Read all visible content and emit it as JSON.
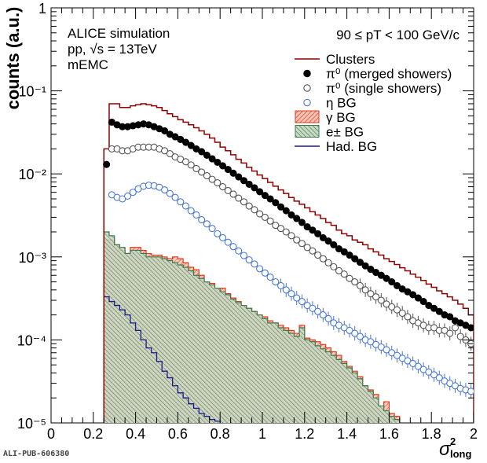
{
  "chart_data": {
    "type": "line",
    "ylabel": "counts (a.u.)",
    "xlabel": "σ²long",
    "x_scale": "linear",
    "y_scale": "log",
    "xlim": [
      0,
      2
    ],
    "ylim": [
      1e-05,
      1
    ],
    "x_ticks": [
      0,
      0.2,
      0.4,
      0.6,
      0.8,
      1,
      1.2,
      1.4,
      1.6,
      1.8,
      2
    ],
    "x_tick_labels": [
      "0",
      "0.2",
      "0.4",
      "0.6",
      "0.8",
      "1",
      "1.2",
      "1.4",
      "1.6",
      "1.8",
      "2"
    ],
    "y_ticks": [
      1e-05,
      0.0001,
      0.001,
      0.01,
      0.1,
      1
    ],
    "y_tick_labels": [
      "10⁻⁵",
      "10⁻⁴",
      "10⁻³",
      "10⁻²",
      "10⁻¹",
      "1"
    ],
    "annotations": {
      "experiment": "ALICE simulation",
      "system": "pp, √s = 13TeV",
      "detector": "mEMC",
      "pt_range": "90 ≤ pT < 100 GeV/c"
    },
    "legend_position": "top-right",
    "colors": {
      "clusters": "#8b0000",
      "merged": "#000000",
      "single": "#555555",
      "eta": "#4a78d0",
      "gamma": "#e03a1a",
      "electron": "#3f7a4e",
      "hadron": "#1a1a8c"
    },
    "bin_edges": [
      0.25,
      0.275,
      0.3,
      0.325,
      0.35,
      0.375,
      0.4,
      0.425,
      0.45,
      0.475,
      0.5,
      0.525,
      0.55,
      0.575,
      0.6,
      0.625,
      0.65,
      0.675,
      0.7,
      0.725,
      0.75,
      0.775,
      0.8,
      0.825,
      0.85,
      0.875,
      0.9,
      0.925,
      0.95,
      0.975,
      1.0,
      1.025,
      1.05,
      1.075,
      1.1,
      1.125,
      1.15,
      1.175,
      1.2,
      1.225,
      1.25,
      1.275,
      1.3,
      1.325,
      1.35,
      1.375,
      1.4,
      1.425,
      1.45,
      1.475,
      1.5,
      1.525,
      1.55,
      1.575,
      1.6,
      1.625,
      1.65,
      1.675,
      1.7,
      1.725,
      1.75,
      1.775,
      1.8,
      1.825,
      1.85,
      1.875,
      1.9,
      1.925,
      1.95,
      1.975,
      2.0
    ],
    "series": [
      {
        "name": "Clusters",
        "style": "histogram",
        "color_key": "clusters",
        "values": [
          0.02,
          0.07,
          0.07,
          0.063,
          0.063,
          0.066,
          0.068,
          0.07,
          0.068,
          0.066,
          0.063,
          0.058,
          0.053,
          0.049,
          0.045,
          0.042,
          0.039,
          0.036,
          0.033,
          0.03,
          0.027,
          0.024,
          0.021,
          0.019,
          0.017,
          0.015,
          0.0135,
          0.012,
          0.0108,
          0.0097,
          0.0088,
          0.0079,
          0.0071,
          0.0064,
          0.0058,
          0.0052,
          0.0047,
          0.0043,
          0.0039,
          0.0035,
          0.0032,
          0.0029,
          0.0026,
          0.0024,
          0.0021,
          0.0019,
          0.0018,
          0.0016,
          0.0015,
          0.0014,
          0.00125,
          0.00115,
          0.00105,
          0.00095,
          0.00088,
          0.00081,
          0.00074,
          0.00068,
          0.00062,
          0.00057,
          0.00052,
          0.00047,
          0.00043,
          0.00039,
          0.00036,
          0.00033,
          0.0003,
          0.00027,
          0.00024,
          0.0002
        ]
      },
      {
        "name": "π⁰ (merged showers)",
        "style": "filled-markers",
        "color_key": "merged",
        "x": [
          0.2625,
          0.2875,
          0.3125,
          0.3375,
          0.3625,
          0.3875,
          0.4125,
          0.4375,
          0.4625,
          0.4875,
          0.5125,
          0.5375,
          0.5625,
          0.5875,
          0.6125,
          0.6375,
          0.6625,
          0.6875,
          0.7125,
          0.7375,
          0.7625,
          0.7875,
          0.8125,
          0.8375,
          0.8625,
          0.8875,
          0.9125,
          0.9375,
          0.9625,
          0.9875,
          1.0125,
          1.0375,
          1.0625,
          1.0875,
          1.1125,
          1.1375,
          1.1625,
          1.1875,
          1.2125,
          1.2375,
          1.2625,
          1.2875,
          1.3125,
          1.3375,
          1.3625,
          1.3875,
          1.4125,
          1.4375,
          1.4625,
          1.4875,
          1.5125,
          1.5375,
          1.5625,
          1.5875,
          1.6125,
          1.6375,
          1.6625,
          1.6875,
          1.7125,
          1.7375,
          1.7625,
          1.7875,
          1.8125,
          1.8375,
          1.8625,
          1.8875,
          1.9125,
          1.9375,
          1.9625,
          1.9875
        ],
        "values": [
          0.013,
          0.042,
          0.039,
          0.037,
          0.037,
          0.038,
          0.039,
          0.04,
          0.039,
          0.037,
          0.035,
          0.033,
          0.03,
          0.028,
          0.026,
          0.024,
          0.022,
          0.02,
          0.0185,
          0.0168,
          0.0152,
          0.0138,
          0.0125,
          0.0113,
          0.0102,
          0.0092,
          0.0083,
          0.0075,
          0.0068,
          0.0061,
          0.0055,
          0.005,
          0.0045,
          0.004,
          0.0036,
          0.0032,
          0.0029,
          0.0026,
          0.0023,
          0.0021,
          0.0019,
          0.0017,
          0.00155,
          0.0014,
          0.00125,
          0.00115,
          0.00105,
          0.00095,
          0.00086,
          0.00078,
          0.00071,
          0.00065,
          0.0006,
          0.00055,
          0.0005,
          0.00045,
          0.00041,
          0.00038,
          0.00035,
          0.00032,
          0.00029,
          0.00026,
          0.00024,
          0.00022,
          0.0002,
          0.00019,
          0.00017,
          0.00016,
          0.00015,
          0.00014
        ]
      },
      {
        "name": "π⁰ (single showers)",
        "style": "open-markers",
        "color_key": "single",
        "x": [
          0.2875,
          0.3125,
          0.3375,
          0.3625,
          0.3875,
          0.4125,
          0.4375,
          0.4625,
          0.4875,
          0.5125,
          0.5375,
          0.5625,
          0.5875,
          0.6125,
          0.6375,
          0.6625,
          0.6875,
          0.7125,
          0.7375,
          0.7625,
          0.7875,
          0.8125,
          0.8375,
          0.8625,
          0.8875,
          0.9125,
          0.9375,
          0.9625,
          0.9875,
          1.0125,
          1.0375,
          1.0625,
          1.0875,
          1.1125,
          1.1375,
          1.1625,
          1.1875,
          1.2125,
          1.2375,
          1.2625,
          1.2875,
          1.3125,
          1.3375,
          1.3625,
          1.3875,
          1.4125,
          1.4375,
          1.4625,
          1.4875,
          1.5125,
          1.5375,
          1.5625,
          1.5875,
          1.6125,
          1.6375,
          1.6625,
          1.6875,
          1.7125,
          1.7375,
          1.7625,
          1.7875,
          1.8125,
          1.8375,
          1.8625,
          1.8875,
          1.9125,
          1.9375,
          1.9625,
          1.9875
        ],
        "values": [
          0.02,
          0.02,
          0.019,
          0.019,
          0.02,
          0.021,
          0.021,
          0.021,
          0.021,
          0.02,
          0.019,
          0.0175,
          0.016,
          0.015,
          0.014,
          0.0128,
          0.0116,
          0.0105,
          0.0095,
          0.0086,
          0.0078,
          0.007,
          0.0063,
          0.0057,
          0.0051,
          0.0046,
          0.0041,
          0.0037,
          0.0033,
          0.003,
          0.0027,
          0.0024,
          0.0022,
          0.002,
          0.0018,
          0.0016,
          0.00145,
          0.0013,
          0.00118,
          0.00105,
          0.00095,
          0.00085,
          0.00076,
          0.00068,
          0.00062,
          0.00055,
          0.0005,
          0.00045,
          0.0004,
          0.00036,
          0.00033,
          0.0003,
          0.00027,
          0.00025,
          0.00023,
          0.00021,
          0.00019,
          0.00017,
          0.00016,
          0.00015,
          0.00014,
          0.00014,
          0.00013,
          0.00013,
          0.00012,
          0.00014,
          0.00011,
          0.0001,
          9e-05
        ]
      },
      {
        "name": "η BG",
        "style": "open-markers",
        "color_key": "eta",
        "x": [
          0.2875,
          0.3125,
          0.3375,
          0.3625,
          0.3875,
          0.4125,
          0.4375,
          0.4625,
          0.4875,
          0.5125,
          0.5375,
          0.5625,
          0.5875,
          0.6125,
          0.6375,
          0.6625,
          0.6875,
          0.7125,
          0.7375,
          0.7625,
          0.7875,
          0.8125,
          0.8375,
          0.8625,
          0.8875,
          0.9125,
          0.9375,
          0.9625,
          0.9875,
          1.0125,
          1.0375,
          1.0625,
          1.0875,
          1.1125,
          1.1375,
          1.1625,
          1.1875,
          1.2125,
          1.2375,
          1.2625,
          1.2875,
          1.3125,
          1.3375,
          1.3625,
          1.3875,
          1.4125,
          1.4375,
          1.4625,
          1.4875,
          1.5125,
          1.5375,
          1.5625,
          1.5875,
          1.6125,
          1.6375,
          1.6625,
          1.6875,
          1.7125,
          1.7375,
          1.7625,
          1.7875,
          1.8125,
          1.8375,
          1.8625,
          1.8875,
          1.9125,
          1.9375,
          1.9625,
          1.9875
        ],
        "values": [
          0.0056,
          0.0052,
          0.005,
          0.0054,
          0.006,
          0.0066,
          0.0071,
          0.0073,
          0.0072,
          0.0069,
          0.0064,
          0.0058,
          0.0052,
          0.0046,
          0.0041,
          0.0036,
          0.0032,
          0.0028,
          0.0025,
          0.0022,
          0.0019,
          0.0017,
          0.0015,
          0.00133,
          0.00118,
          0.00104,
          0.00092,
          0.00082,
          0.00072,
          0.00064,
          0.00057,
          0.0005,
          0.00045,
          0.0004,
          0.00036,
          0.00032,
          0.00029,
          0.00026,
          0.00024,
          0.00022,
          0.0002,
          0.00018,
          0.00016,
          0.00015,
          0.00014,
          0.00013,
          0.00012,
          0.00011,
          0.0001,
          9.5e-05,
          8.8e-05,
          8.2e-05,
          7.6e-05,
          7e-05,
          6.5e-05,
          6e-05,
          5.6e-05,
          5.2e-05,
          4.8e-05,
          4.4e-05,
          4.1e-05,
          3.8e-05,
          3.5e-05,
          3.2e-05,
          3e-05,
          2.8e-05,
          2.6e-05,
          2.5e-05,
          2.4e-05
        ]
      },
      {
        "name": "γ BG",
        "style": "hatched-histogram",
        "color_key": "gamma",
        "values": [
          0.0016,
          0.0016,
          0.0014,
          0.0012,
          0.0011,
          0.0013,
          0.0013,
          0.0012,
          0.0011,
          0.00105,
          0.00105,
          0.001,
          0.00095,
          0.001,
          0.00095,
          0.00085,
          0.00075,
          0.0007,
          0.0006,
          0.0005,
          0.00048,
          0.00042,
          0.00042,
          0.00036,
          0.00032,
          0.00029,
          0.00026,
          0.00024,
          0.00022,
          0.0002,
          0.00019,
          0.00017,
          0.00016,
          0.00015,
          0.00014,
          0.00013,
          0.00012,
          0.00015,
          0.000105,
          0.0001,
          9.5e-05,
          8.8e-05,
          8e-05,
          7.2e-05,
          6.5e-05,
          5.5e-05,
          4.8e-05,
          4.2e-05,
          3.6e-05,
          2.8e-05,
          2.5e-05,
          2.2e-05,
          1.6e-05,
          1.8e-05,
          1.3e-05,
          1.2e-05
        ]
      },
      {
        "name": "e± BG",
        "style": "hatched-histogram",
        "color_key": "electron",
        "values": [
          0.002,
          0.0018,
          0.0014,
          0.0013,
          0.0011,
          0.0012,
          0.0012,
          0.0011,
          0.001,
          0.001,
          0.001,
          0.00095,
          0.0009,
          0.00085,
          0.0008,
          0.00075,
          0.00068,
          0.0006,
          0.00055,
          0.0005,
          0.00046,
          0.00042,
          0.00038,
          0.00035,
          0.00031,
          0.00028,
          0.00026,
          0.00024,
          0.00022,
          0.0002,
          0.00018,
          0.00016,
          0.00016,
          0.00014,
          0.00013,
          0.00012,
          0.00011,
          0.00014,
          0.0001,
          9.5e-05,
          8.5e-05,
          7.8e-05,
          7.2e-05,
          6.5e-05,
          5.8e-05,
          5.2e-05,
          4.6e-05,
          4e-05,
          3.4e-05,
          2.8e-05,
          2.4e-05,
          2e-05,
          1.6e-05,
          1.4e-05,
          1.2e-05,
          1.1e-05
        ]
      },
      {
        "name": "Had. BG",
        "style": "histogram",
        "color_key": "hadron",
        "values": [
          0.00033,
          0.00029,
          0.00026,
          0.00023,
          0.0002,
          0.00016,
          0.00013,
          0.0001,
          8e-05,
          7e-05,
          5.5e-05,
          4.2e-05,
          3.5e-05,
          2.8e-05,
          2.3e-05,
          2e-05,
          1.7e-05,
          1.5e-05,
          1.3e-05,
          1.2e-05,
          1.1e-05,
          1.05e-05
        ]
      }
    ],
    "legend": [
      {
        "label": "Clusters",
        "key": "clusters",
        "kind": "line"
      },
      {
        "label": "π⁰ (merged showers)",
        "key": "merged",
        "kind": "filled"
      },
      {
        "label": "π⁰ (single showers)",
        "key": "single",
        "kind": "open"
      },
      {
        "label": "η BG",
        "key": "eta",
        "kind": "open"
      },
      {
        "label": "γ BG",
        "key": "gamma",
        "kind": "box"
      },
      {
        "label": "e± BG",
        "key": "electron",
        "kind": "box"
      },
      {
        "label": "Had. BG",
        "key": "hadron",
        "kind": "line"
      }
    ]
  },
  "footer": "ALI-PUB-606380"
}
